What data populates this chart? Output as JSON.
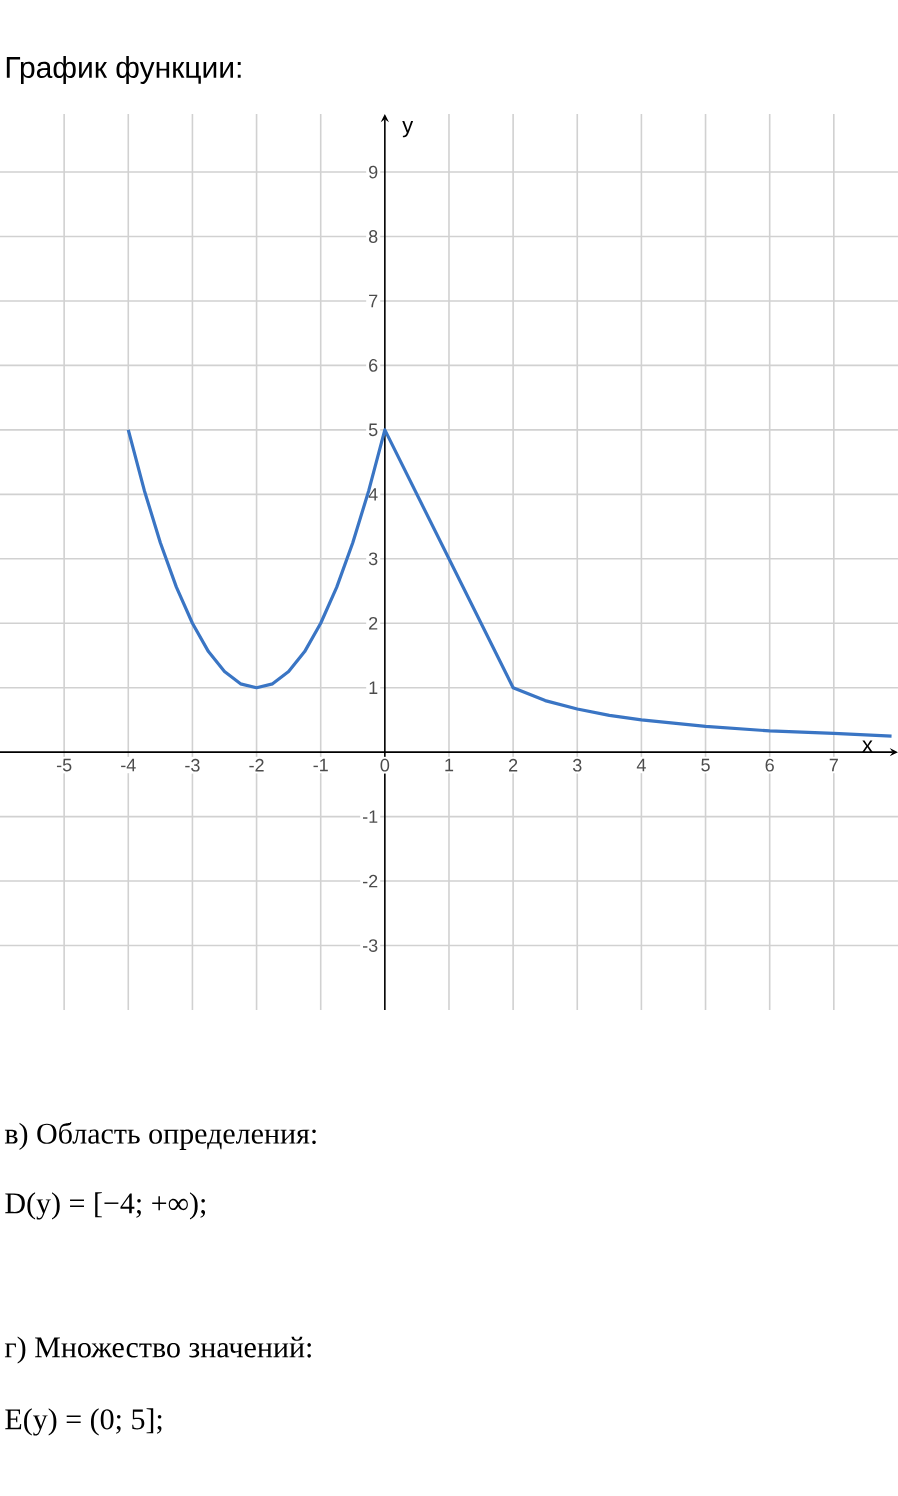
{
  "chart_data": {
    "type": "line",
    "title": "График функции:",
    "xlabel": "x",
    "ylabel": "y",
    "annotations": [
      "в) Область определения:",
      "D(y) = [−4; +∞);",
      "г) Множество значений:",
      "E(y) = (0; 5];"
    ],
    "series": [
      {
        "color": "#3a75c4",
        "x": [
          -4,
          -3.75,
          -3.5,
          -3.25,
          -3,
          -2.75,
          -2.5,
          -2.25,
          -2,
          -1.75,
          -1.5,
          -1.25,
          -1,
          -0.75,
          -0.5,
          -0.25,
          0,
          2,
          2.5,
          3,
          3.5,
          4,
          5,
          6,
          7,
          7.9
        ],
        "values": [
          5,
          4.06,
          3.25,
          2.56,
          2,
          1.56,
          1.25,
          1.06,
          1,
          1.06,
          1.25,
          1.56,
          2,
          2.56,
          3.25,
          4.06,
          5,
          1,
          0.8,
          0.67,
          0.57,
          0.5,
          0.4,
          0.33,
          0.29,
          0.25
        ]
      }
    ],
    "xlim": [
      -6,
      8
    ],
    "ylim": [
      -4,
      9.9
    ],
    "xticks": [
      -5,
      -4,
      -3,
      -2,
      -1,
      0,
      1,
      2,
      3,
      4,
      5,
      6,
      7
    ],
    "yticks": [
      -3,
      -2,
      -1,
      1,
      2,
      3,
      4,
      5,
      6,
      7,
      8,
      9
    ],
    "grid": true,
    "marker": "none",
    "line_style": "solid"
  }
}
